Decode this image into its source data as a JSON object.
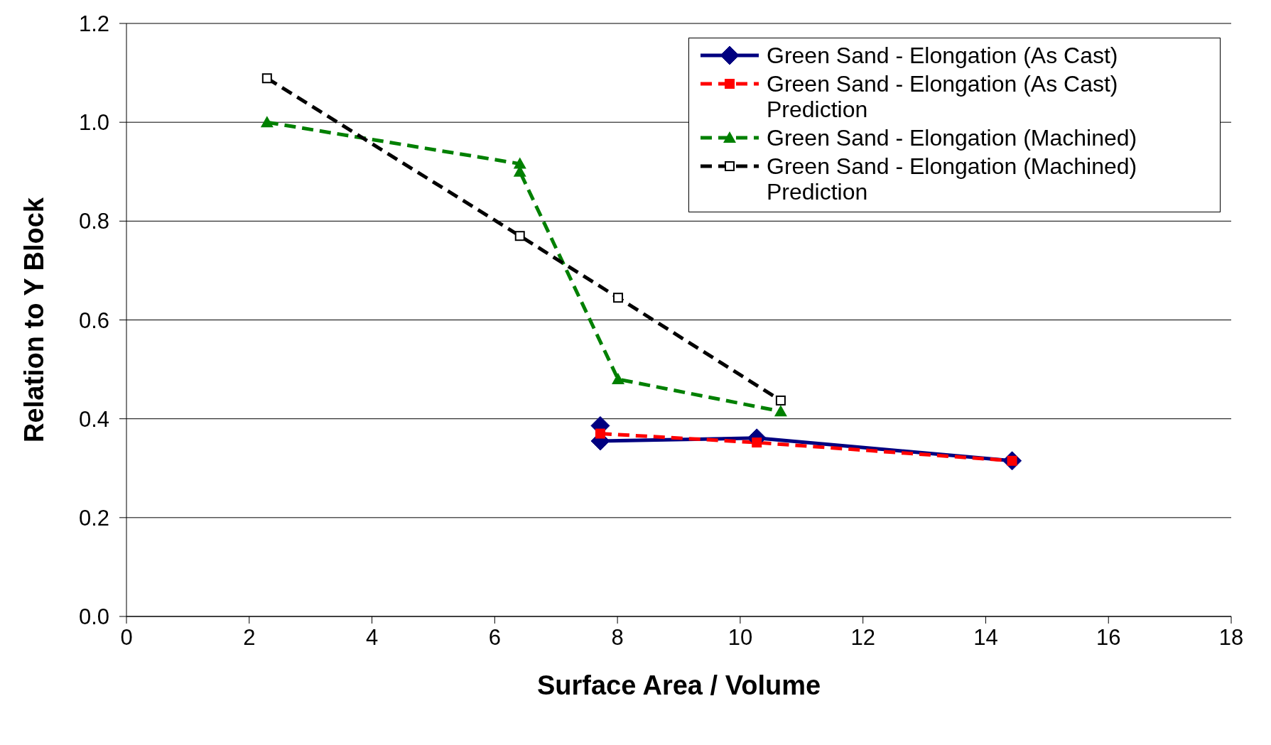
{
  "chart_data": {
    "type": "line",
    "xlabel": "Surface Area / Volume",
    "ylabel": "Relation to Y Block",
    "xlim": [
      0,
      18
    ],
    "xticks": [
      0,
      2,
      4,
      6,
      8,
      10,
      12,
      14,
      16,
      18
    ],
    "ylim": [
      0,
      1.2
    ],
    "yticks": [
      {
        "value": 0,
        "label": "0.0"
      },
      {
        "value": 0.2,
        "label": "0.2"
      },
      {
        "value": 0.4,
        "label": "0.4"
      },
      {
        "value": 0.6,
        "label": "0.6"
      },
      {
        "value": 0.8,
        "label": "0.8"
      },
      {
        "value": 1,
        "label": "1.0"
      },
      {
        "value": 1.2,
        "label": "1.2"
      }
    ],
    "grid": "y",
    "legend": "top right",
    "series": [
      {
        "name": "Green Sand - Elongation  (As Cast)",
        "color": "#000080",
        "marker": "diamond",
        "line_style": "solid",
        "x": [
          7.72,
          7.72,
          10.27,
          14.43
        ],
        "values": [
          0.386,
          0.355,
          0.361,
          0.315
        ]
      },
      {
        "name": "Green Sand - Elongation  (As Cast) Prediction",
        "color": "#ff0000",
        "marker": "square",
        "line_style": "dashed",
        "x": [
          7.72,
          10.27,
          14.43
        ],
        "values": [
          0.37,
          0.352,
          0.315
        ]
      },
      {
        "name": "Green Sand - Elongation  (Machined)",
        "color": "#008000",
        "marker": "triangle",
        "line_style": "dashed",
        "x": [
          2.29,
          6.41,
          6.41,
          8.01,
          10.66
        ],
        "values": [
          1.0,
          0.916,
          0.9,
          0.48,
          0.415
        ]
      },
      {
        "name": "Green Sand - Elongation  (Machined) Prediction",
        "color": "#000000",
        "marker": "square",
        "line_style": "dashed",
        "x": [
          2.29,
          6.41,
          8.01,
          10.66
        ],
        "values": [
          1.089,
          0.77,
          0.645,
          0.437
        ]
      }
    ]
  }
}
